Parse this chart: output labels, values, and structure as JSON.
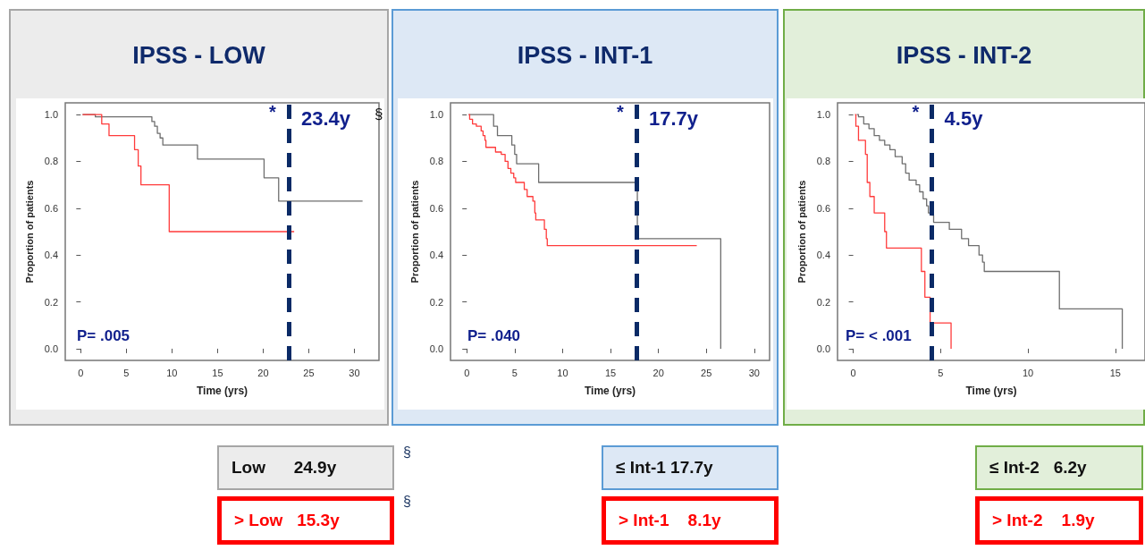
{
  "chart_data": [
    {
      "type": "step",
      "title": "IPSS - LOW",
      "xlabel": "Time (yrs)",
      "ylabel": "Proportion of patients",
      "xlim": [
        -1.7,
        32.7
      ],
      "xticks": [
        0,
        5,
        10,
        15,
        20,
        25,
        30
      ],
      "ylim": [
        -0.05,
        1.05
      ],
      "yticks": [
        {
          "value": 0,
          "label": "0.0"
        },
        {
          "value": 0.2,
          "label": "0.2"
        },
        {
          "value": 0.4,
          "label": "0.4"
        },
        {
          "value": 0.6,
          "label": "0.6"
        },
        {
          "value": 0.8,
          "label": "0.8"
        },
        {
          "value": 1,
          "label": "1.0"
        }
      ],
      "series": [
        {
          "color": "#6e6e6e",
          "x": [
            0.2,
            1.6,
            7.8,
            8.1,
            8.4,
            8.7,
            9.0,
            12.8,
            20.1,
            21.7,
            30.9
          ],
          "values": [
            1,
            0.99,
            0.97,
            0.95,
            0.92,
            0.9,
            0.87,
            0.81,
            0.73,
            0.63,
            0.63
          ]
        },
        {
          "color": "#ff3b3b",
          "x": [
            0.2,
            2.3,
            3.1,
            5.9,
            6.3,
            6.6,
            9.7,
            23.4
          ],
          "values": [
            1,
            0.96,
            0.91,
            0.85,
            0.78,
            0.7,
            0.5,
            0.5
          ]
        }
      ],
      "ref_lines": [
        {
          "axis": "x",
          "value": 22.8,
          "label": "23.4y",
          "color": "#0a2a66",
          "line_style": "dashed"
        }
      ],
      "annotations": [
        "*",
        "§",
        "P= .005",
        "Low      24.9y",
        "> Low   15.3y",
        "§",
        "§"
      ]
    },
    {
      "type": "step",
      "title": "IPSS - INT-1",
      "xlabel": "Time (yrs)",
      "ylabel": "Proportion of patients",
      "xlim": [
        -1.7,
        31.6
      ],
      "xticks": [
        0,
        5,
        10,
        15,
        20,
        25,
        30
      ],
      "ylim": [
        -0.05,
        1.05
      ],
      "yticks": [
        {
          "value": 0,
          "label": "0.0"
        },
        {
          "value": 0.2,
          "label": "0.2"
        },
        {
          "value": 0.4,
          "label": "0.4"
        },
        {
          "value": 0.6,
          "label": "0.6"
        },
        {
          "value": 0.8,
          "label": "0.8"
        },
        {
          "value": 1,
          "label": "1.0"
        }
      ],
      "series": [
        {
          "color": "#6e6e6e",
          "x": [
            0.2,
            2.8,
            3.2,
            4.7,
            5.0,
            5.2,
            7.5,
            17.8,
            26.5
          ],
          "values": [
            1,
            0.95,
            0.91,
            0.87,
            0.83,
            0.79,
            0.71,
            0.47,
            0
          ]
        },
        {
          "color": "#ff3b3b",
          "x": [
            0.2,
            0.3,
            0.6,
            1.0,
            1.5,
            1.7,
            1.9,
            2.0,
            3.0,
            3.6,
            4.0,
            4.3,
            4.6,
            4.9,
            5.1,
            6.0,
            6.3,
            6.9,
            7.1,
            7.2,
            8.1,
            8.3,
            8.4,
            24.0
          ],
          "values": [
            1,
            0.98,
            0.96,
            0.95,
            0.93,
            0.91,
            0.89,
            0.86,
            0.84,
            0.83,
            0.8,
            0.77,
            0.75,
            0.73,
            0.71,
            0.68,
            0.65,
            0.63,
            0.58,
            0.55,
            0.51,
            0.47,
            0.44,
            0.44
          ]
        }
      ],
      "ref_lines": [
        {
          "axis": "x",
          "value": 17.7,
          "label": "17.7y",
          "color": "#0a2a66",
          "line_style": "dashed"
        }
      ],
      "annotations": [
        "*",
        "P= .040",
        "≤ Int-1 17.7y",
        "> Int-1    8.1y"
      ]
    },
    {
      "type": "step",
      "title": "IPSS - INT-2",
      "xlabel": "Time (yrs)",
      "ylabel": "Proportion of patients",
      "xlim": [
        -0.9,
        16.7
      ],
      "xticks": [
        0,
        5,
        10,
        15
      ],
      "ylim": [
        -0.05,
        1.05
      ],
      "yticks": [
        {
          "value": 0,
          "label": "0.0"
        },
        {
          "value": 0.2,
          "label": "0.2"
        },
        {
          "value": 0.4,
          "label": "0.4"
        },
        {
          "value": 0.6,
          "label": "0.6"
        },
        {
          "value": 0.8,
          "label": "0.8"
        },
        {
          "value": 1,
          "label": "1.0"
        }
      ],
      "series": [
        {
          "color": "#6e6e6e",
          "x": [
            0.2,
            0.3,
            0.6,
            0.9,
            1.2,
            1.5,
            1.8,
            2.1,
            2.4,
            2.8,
            3.0,
            3.2,
            3.6,
            3.8,
            4.0,
            4.2,
            4.3,
            4.5,
            4.6,
            5.5,
            6.2,
            6.6,
            7.2,
            7.4,
            7.5,
            11.8,
            15.4
          ],
          "values": [
            1,
            0.99,
            0.96,
            0.94,
            0.91,
            0.89,
            0.87,
            0.85,
            0.82,
            0.79,
            0.75,
            0.72,
            0.7,
            0.67,
            0.64,
            0.61,
            0.58,
            0.57,
            0.54,
            0.51,
            0.47,
            0.44,
            0.4,
            0.37,
            0.33,
            0.17,
            0
          ]
        },
        {
          "color": "#ff3b3b",
          "x": [
            0.1,
            0.15,
            0.3,
            0.7,
            0.8,
            0.95,
            1.2,
            1.8,
            1.9,
            3.9,
            4.1,
            4.4,
            5.6
          ],
          "values": [
            1,
            0.95,
            0.89,
            0.83,
            0.71,
            0.65,
            0.58,
            0.5,
            0.43,
            0.33,
            0.22,
            0.11,
            0
          ]
        }
      ],
      "ref_lines": [
        {
          "axis": "x",
          "value": 4.5,
          "label": "4.5y",
          "color": "#0a2a66",
          "line_style": "dashed"
        }
      ],
      "annotations": [
        "*",
        "P= < .001",
        "≤ Int-2   6.2y",
        "> Int-2    1.9y"
      ]
    }
  ]
}
